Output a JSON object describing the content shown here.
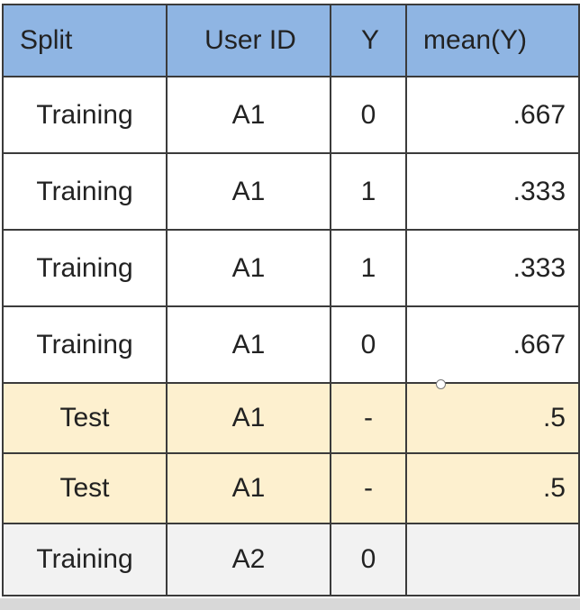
{
  "table": {
    "headers": [
      "Split",
      "User ID",
      "Y",
      "mean(Y)"
    ],
    "rows": [
      {
        "split": "Training",
        "user_id": "A1",
        "y": "0",
        "mean_y": ".667",
        "style": "normal"
      },
      {
        "split": "Training",
        "user_id": "A1",
        "y": "1",
        "mean_y": ".333",
        "style": "normal"
      },
      {
        "split": "Training",
        "user_id": "A1",
        "y": "1",
        "mean_y": ".333",
        "style": "normal"
      },
      {
        "split": "Training",
        "user_id": "A1",
        "y": "0",
        "mean_y": ".667",
        "style": "normal"
      },
      {
        "split": "Test",
        "user_id": "A1",
        "y": "-",
        "mean_y": ".5",
        "style": "test"
      },
      {
        "split": "Test",
        "user_id": "A1",
        "y": "-",
        "mean_y": ".5",
        "style": "test"
      },
      {
        "split": "Training",
        "user_id": "A2",
        "y": "0",
        "mean_y": "",
        "style": "gray"
      }
    ]
  },
  "colors": {
    "header_bg": "#8fb5e3",
    "test_row_bg": "#fdf0cf",
    "gray_row_bg": "#f2f2f2",
    "border": "#3b3b3b"
  }
}
